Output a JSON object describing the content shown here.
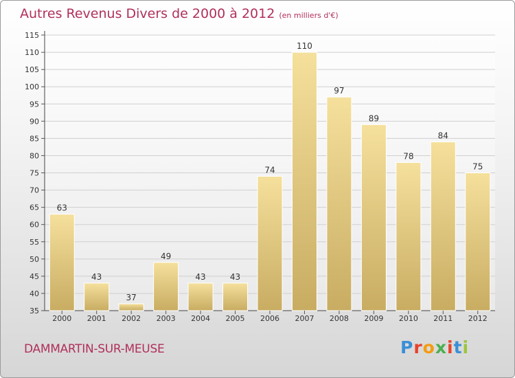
{
  "header": {
    "title": "Autres Revenus Divers de 2000 à 2012",
    "unit": "(en milliers d'€)"
  },
  "footer": {
    "commune": "DAMMARTIN-SUR-MEUSE",
    "logo": "Proxiti"
  },
  "colors": {
    "title": "#b0305a",
    "bar_top": "#f5e09c",
    "bar_bottom": "#c8ac62",
    "grid": "#cfcfcf",
    "logo_letters": [
      "#3a8fd6",
      "#e8422c",
      "#f39c12",
      "#4caf50",
      "#e8422c",
      "#3a8fd6",
      "#9bc53d"
    ]
  },
  "chart_data": {
    "type": "bar",
    "title": "Autres Revenus Divers de 2000 à 2012",
    "categories": [
      "2000",
      "2001",
      "2002",
      "2003",
      "2004",
      "2005",
      "2006",
      "2007",
      "2008",
      "2009",
      "2010",
      "2011",
      "2012"
    ],
    "values": [
      63,
      43,
      37,
      49,
      43,
      43,
      74,
      110,
      97,
      89,
      78,
      84,
      75
    ],
    "ylim": [
      35,
      115
    ],
    "yticks": [
      35,
      40,
      45,
      50,
      55,
      60,
      65,
      70,
      75,
      80,
      85,
      90,
      95,
      100,
      105,
      110,
      115
    ],
    "grid": true,
    "xlabel": "",
    "ylabel": ""
  }
}
